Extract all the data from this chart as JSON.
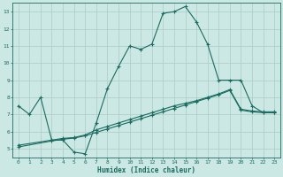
{
  "title": "",
  "xlabel": "Humidex (Indice chaleur)",
  "bg_color": "#cce8e4",
  "grid_color": "#b0d0cc",
  "line_color": "#1a6b60",
  "spine_color": "#1a6b60",
  "xlim": [
    -0.5,
    23.5
  ],
  "ylim": [
    4.5,
    13.5
  ],
  "xticks": [
    0,
    1,
    2,
    3,
    4,
    5,
    6,
    7,
    8,
    9,
    10,
    11,
    12,
    13,
    14,
    15,
    16,
    17,
    18,
    19,
    20,
    21,
    22,
    23
  ],
  "yticks": [
    5,
    6,
    7,
    8,
    9,
    10,
    11,
    12,
    13
  ],
  "line1_x": [
    0,
    1,
    2,
    3,
    4,
    5,
    6,
    7,
    8,
    9,
    10,
    11,
    12,
    13,
    14,
    15,
    16,
    17,
    18,
    19,
    20,
    21,
    22,
    23
  ],
  "line1_y": [
    7.5,
    7.0,
    8.0,
    5.5,
    5.5,
    4.8,
    4.7,
    6.5,
    8.5,
    9.8,
    11.0,
    10.8,
    11.1,
    12.9,
    13.0,
    13.3,
    12.4,
    11.1,
    9.0,
    9.0,
    9.0,
    7.5,
    7.1,
    7.1
  ],
  "line2_x": [
    0,
    3,
    4,
    5,
    6,
    7,
    8,
    9,
    10,
    11,
    12,
    13,
    14,
    15,
    16,
    17,
    18,
    19,
    20,
    21,
    22,
    23
  ],
  "line2_y": [
    5.2,
    5.5,
    5.6,
    5.65,
    5.8,
    6.1,
    6.3,
    6.5,
    6.7,
    6.9,
    7.1,
    7.3,
    7.5,
    7.65,
    7.8,
    8.0,
    8.2,
    8.45,
    7.3,
    7.2,
    7.15,
    7.15
  ],
  "line3_x": [
    0,
    3,
    4,
    5,
    6,
    7,
    8,
    9,
    10,
    11,
    12,
    13,
    14,
    15,
    16,
    17,
    18,
    19,
    20,
    21,
    22,
    23
  ],
  "line3_y": [
    5.1,
    5.45,
    5.55,
    5.62,
    5.75,
    5.95,
    6.15,
    6.35,
    6.55,
    6.75,
    6.95,
    7.15,
    7.35,
    7.55,
    7.75,
    7.95,
    8.15,
    8.4,
    7.25,
    7.15,
    7.1,
    7.1
  ]
}
